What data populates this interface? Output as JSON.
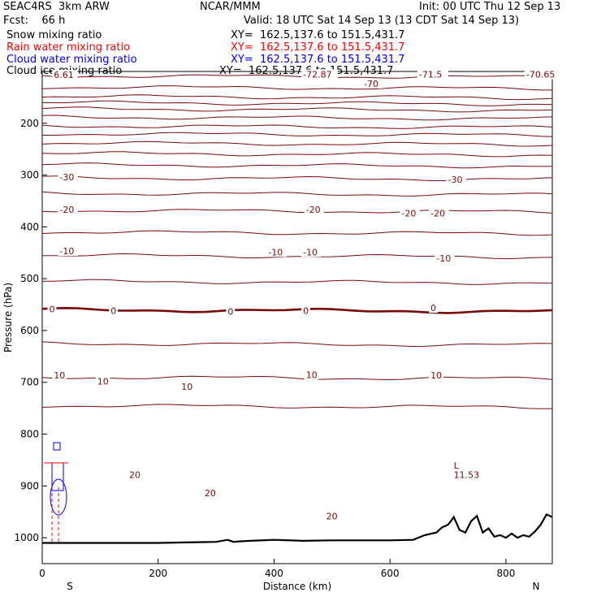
{
  "header": {
    "model": "SEAC4RS  3km ARW",
    "center": "NCAR/MMM",
    "init": "Init: 00 UTC Thu 12 Sep 13",
    "fcst": "Fcst:    66 h",
    "valid": "Valid: 18 UTC Sat 14 Sep 13 (13 CDT Sat 14 Sep 13)"
  },
  "fields": [
    {
      "label": "Snow mixing ratio",
      "xy": "XY=  162.5,137.6 to 151.5,431.7",
      "color": "#000000"
    },
    {
      "label": "Rain water mixing ratio",
      "xy": "XY=  162.5,137.6 to 151.5,431.7",
      "color": "#ff0000"
    },
    {
      "label": "Cloud water mixing ratio",
      "xy": "XY=  162.5,137.6 to 151.5,431.7",
      "color": "#0000ff"
    },
    {
      "label": "Cloud ice mixing ratio",
      "xy": "XY=  162.5,137.6 to 151.5,431.7",
      "color": "#000000"
    }
  ],
  "colors": {
    "isotherm": "#7a0a0a",
    "terrain": "#000000",
    "rain": "#ff0000",
    "cloud": "#0000ff"
  },
  "chart_data": {
    "type": "line",
    "xlabel": "Distance (km)",
    "ylabel": "Pressure (hPa)",
    "xlim": [
      0,
      880
    ],
    "ylim": [
      1050,
      100
    ],
    "x_ticks": [
      0,
      200,
      400,
      600,
      800
    ],
    "y_ticks": [
      200,
      300,
      400,
      500,
      600,
      700,
      800,
      900,
      1000
    ],
    "end_labels": {
      "left": "S",
      "right": "N"
    },
    "isotherm_pressures": [
      108,
      130,
      148,
      160,
      172,
      188,
      205,
      220,
      238,
      258,
      280,
      305,
      335,
      368,
      410,
      455,
      505,
      560,
      625,
      690,
      745
    ],
    "contour_labels": [
      {
        "text": "6.61",
        "x": 20,
        "p": 108
      },
      {
        "text": "-72.87",
        "x": 450,
        "p": 107
      },
      {
        "text": "-70",
        "x": 555,
        "p": 125
      },
      {
        "text": "-71.5",
        "x": 650,
        "p": 107
      },
      {
        "text": "-70.65",
        "x": 835,
        "p": 107
      },
      {
        "text": "-30",
        "x": 30,
        "p": 305
      },
      {
        "text": "-30",
        "x": 700,
        "p": 310
      },
      {
        "text": "-20",
        "x": 30,
        "p": 368
      },
      {
        "text": "-20",
        "x": 455,
        "p": 368
      },
      {
        "text": "-20",
        "x": 620,
        "p": 375
      },
      {
        "text": "-20",
        "x": 670,
        "p": 375
      },
      {
        "text": "-10",
        "x": 30,
        "p": 448
      },
      {
        "text": "-10",
        "x": 390,
        "p": 450
      },
      {
        "text": "-10",
        "x": 450,
        "p": 450
      },
      {
        "text": "-10",
        "x": 680,
        "p": 462
      },
      {
        "text": "0",
        "x": 12,
        "p": 560
      },
      {
        "text": "0",
        "x": 118,
        "p": 563
      },
      {
        "text": "0",
        "x": 320,
        "p": 565
      },
      {
        "text": "0",
        "x": 450,
        "p": 563
      },
      {
        "text": "0",
        "x": 670,
        "p": 558
      },
      {
        "text": "10",
        "x": 20,
        "p": 688
      },
      {
        "text": "10",
        "x": 95,
        "p": 700
      },
      {
        "text": "10",
        "x": 240,
        "p": 710
      },
      {
        "text": "10",
        "x": 455,
        "p": 687
      },
      {
        "text": "10",
        "x": 670,
        "p": 688
      },
      {
        "text": "20",
        "x": 150,
        "p": 880
      },
      {
        "text": "20",
        "x": 280,
        "p": 915
      },
      {
        "text": "20",
        "x": 490,
        "p": 960
      },
      {
        "text": "L",
        "x": 710,
        "p": 862
      },
      {
        "text": "11.53",
        "x": 710,
        "p": 880
      }
    ],
    "terrain": {
      "x": [
        0,
        60,
        100,
        200,
        300,
        320,
        330,
        340,
        360,
        400,
        450,
        500,
        600,
        640,
        660,
        680,
        690,
        700,
        705,
        710,
        720,
        730,
        740,
        750,
        760,
        770,
        780,
        790,
        800,
        810,
        820,
        830,
        840,
        850,
        860,
        870,
        880
      ],
      "p": [
        1010,
        1010,
        1010,
        1010,
        1008,
        1004,
        1008,
        1007,
        1006,
        1004,
        1006,
        1005,
        1005,
        1004,
        995,
        990,
        980,
        975,
        968,
        960,
        985,
        990,
        968,
        958,
        990,
        982,
        998,
        995,
        1000,
        992,
        1000,
        995,
        998,
        988,
        975,
        955,
        960
      ]
    }
  }
}
